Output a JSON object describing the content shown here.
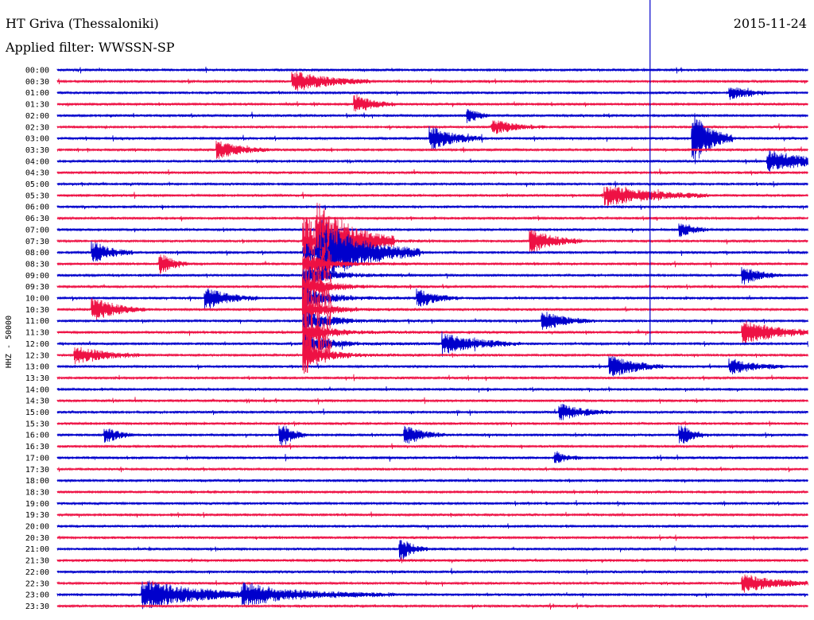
{
  "header": {
    "station": "HT Griva (Thessaloniki)",
    "filter": "Applied filter: WWSSN-SP",
    "date": "2015-11-24"
  },
  "colors": {
    "trace_a": "#0000cc",
    "trace_b": "#ee1144",
    "marker": "#0000cc"
  },
  "chart_data": {
    "type": "helicorder",
    "ylabel": "HHZ - 50000",
    "rows": [
      "00:00",
      "00:30",
      "01:00",
      "01:30",
      "02:00",
      "02:30",
      "03:00",
      "03:30",
      "04:00",
      "04:30",
      "05:00",
      "05:30",
      "06:00",
      "06:30",
      "07:00",
      "07:30",
      "08:00",
      "08:30",
      "09:00",
      "09:30",
      "10:00",
      "10:30",
      "11:00",
      "11:30",
      "12:00",
      "12:30",
      "13:00",
      "13:30",
      "14:00",
      "14:30",
      "15:00",
      "15:30",
      "16:00",
      "16:30",
      "17:00",
      "17:30",
      "18:00",
      "18:30",
      "19:00",
      "19:30",
      "20:00",
      "20:30",
      "21:00",
      "21:30",
      "22:00",
      "22:30",
      "23:00",
      "23:30"
    ],
    "row_minutes": 30,
    "events": [
      {
        "row": 1,
        "minute": 9.5,
        "amp": 1.4,
        "dur": 3
      },
      {
        "row": 3,
        "minute": 12,
        "amp": 1.2,
        "dur": 1.5
      },
      {
        "row": 2,
        "minute": 27,
        "amp": 0.9,
        "dur": 1.5
      },
      {
        "row": 4,
        "minute": 16.5,
        "amp": 1.0,
        "dur": 0.8
      },
      {
        "row": 5,
        "minute": 17.5,
        "amp": 0.9,
        "dur": 2
      },
      {
        "row": 6,
        "minute": 15,
        "amp": 1.6,
        "dur": 2
      },
      {
        "row": 6,
        "minute": 25.5,
        "amp": 3.5,
        "dur": 1.5
      },
      {
        "row": 7,
        "minute": 6.5,
        "amp": 1.2,
        "dur": 2
      },
      {
        "row": 8,
        "minute": 28.5,
        "amp": 1.4,
        "dur": 4
      },
      {
        "row": 11,
        "minute": 22,
        "amp": 1.4,
        "dur": 4
      },
      {
        "row": 14,
        "minute": 25,
        "amp": 1.0,
        "dur": 1
      },
      {
        "row": 15,
        "minute": 19,
        "amp": 1.6,
        "dur": 2
      },
      {
        "row": 15,
        "minute": 10.5,
        "amp": 5,
        "dur": 3
      },
      {
        "row": 16,
        "minute": 1.5,
        "amp": 1.4,
        "dur": 1.5
      },
      {
        "row": 17,
        "minute": 4.2,
        "amp": 1.4,
        "dur": 1
      },
      {
        "row": 16,
        "minute": 10.5,
        "amp": 4,
        "dur": 4
      },
      {
        "row": 18,
        "minute": 27.5,
        "amp": 1.2,
        "dur": 1.5
      },
      {
        "row": 20,
        "minute": 6.0,
        "amp": 1.4,
        "dur": 2
      },
      {
        "row": 20,
        "minute": 14.5,
        "amp": 1.2,
        "dur": 1.5
      },
      {
        "row": 21,
        "minute": 1.5,
        "amp": 1.6,
        "dur": 2
      },
      {
        "row": 22,
        "minute": 19.5,
        "amp": 1.2,
        "dur": 2
      },
      {
        "row": 23,
        "minute": 27.5,
        "amp": 1.6,
        "dur": 3
      },
      {
        "row": 24,
        "minute": 15.5,
        "amp": 1.4,
        "dur": 3
      },
      {
        "row": 25,
        "minute": 0.8,
        "amp": 1.2,
        "dur": 2.5
      },
      {
        "row": 26,
        "minute": 22.2,
        "amp": 1.6,
        "dur": 2
      },
      {
        "row": 26,
        "minute": 27.0,
        "amp": 1.0,
        "dur": 2
      },
      {
        "row": 30,
        "minute": 20.2,
        "amp": 1.0,
        "dur": 2
      },
      {
        "row": 32,
        "minute": 2.0,
        "amp": 1.2,
        "dur": 1
      },
      {
        "row": 32,
        "minute": 9.0,
        "amp": 1.6,
        "dur": 1
      },
      {
        "row": 32,
        "minute": 14.0,
        "amp": 1.2,
        "dur": 1.5
      },
      {
        "row": 32,
        "minute": 25.0,
        "amp": 1.4,
        "dur": 1
      },
      {
        "row": 34,
        "minute": 20.0,
        "amp": 0.8,
        "dur": 1
      },
      {
        "row": 42,
        "minute": 13.8,
        "amp": 1.4,
        "dur": 1
      },
      {
        "row": 45,
        "minute": 27.5,
        "amp": 1.2,
        "dur": 3
      },
      {
        "row": 46,
        "minute": 3.5,
        "amp": 2.0,
        "dur": 5
      },
      {
        "row": 46,
        "minute": 7.5,
        "amp": 1.2,
        "dur": 6
      }
    ],
    "quake": {
      "start_row": 15,
      "end_row": 25,
      "minute": 9.8,
      "amp": 1.0
    },
    "marker_minute": 23.7
  }
}
